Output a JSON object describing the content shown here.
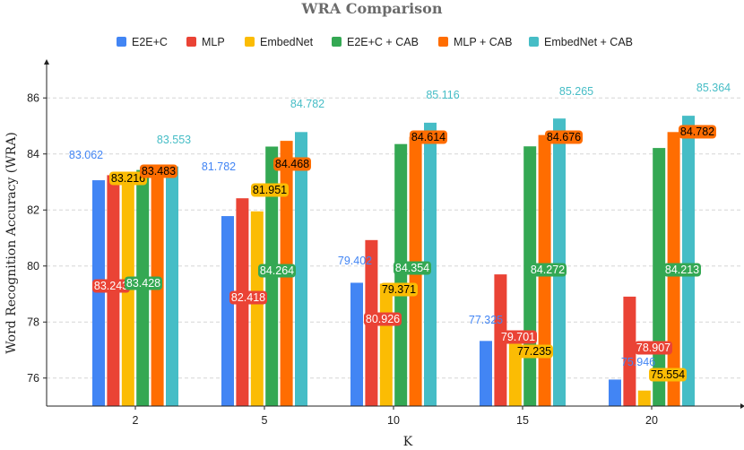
{
  "chart_data": {
    "type": "bar",
    "title": "WRA Comparison",
    "xlabel": "K",
    "ylabel": "Word Recognition Accuracy (WRA)",
    "categories": [
      "2",
      "5",
      "10",
      "15",
      "20"
    ],
    "ylim": [
      75,
      87
    ],
    "yticks": [
      76,
      78,
      80,
      82,
      84,
      86
    ],
    "grid": true,
    "legend_position": "top-center",
    "series": [
      {
        "name": "E2E+C",
        "color": "#4285f4",
        "values": [
          83.062,
          81.782,
          79.402,
          77.325,
          75.946
        ],
        "labels": [
          "83.062",
          "81.782",
          "79.402",
          "77.325",
          "75.946"
        ]
      },
      {
        "name": "MLP",
        "color": "#ea4335",
        "values": [
          83.243,
          82.418,
          80.926,
          79.701,
          78.907
        ],
        "labels": [
          "83.243",
          "82.418",
          "80.926",
          "79.701",
          "78.907"
        ]
      },
      {
        "name": "EmbedNet",
        "color": "#fbbc04",
        "values": [
          83.216,
          81.951,
          79.371,
          77.235,
          75.554
        ],
        "labels": [
          "83.216",
          "81.951",
          "79.371",
          "77.235",
          "75.554"
        ]
      },
      {
        "name": "E2E+C + CAB",
        "color": "#34a853",
        "values": [
          83.428,
          84.264,
          84.354,
          84.272,
          84.213
        ],
        "labels": [
          "83.428",
          "84.264",
          "84.354",
          "84.272",
          "84.213"
        ]
      },
      {
        "name": "MLP + CAB",
        "color": "#ff6d01",
        "values": [
          83.483,
          84.468,
          84.614,
          84.676,
          84.782
        ],
        "labels": [
          "83.483",
          "84.468",
          "84.614",
          "84.676",
          "84.782"
        ]
      },
      {
        "name": "EmbedNet + CAB",
        "color": "#46bdc6",
        "values": [
          83.553,
          84.782,
          85.116,
          85.265,
          85.364
        ],
        "labels": [
          "83.553",
          "84.782",
          "85.116",
          "85.265",
          "85.364"
        ]
      }
    ]
  }
}
